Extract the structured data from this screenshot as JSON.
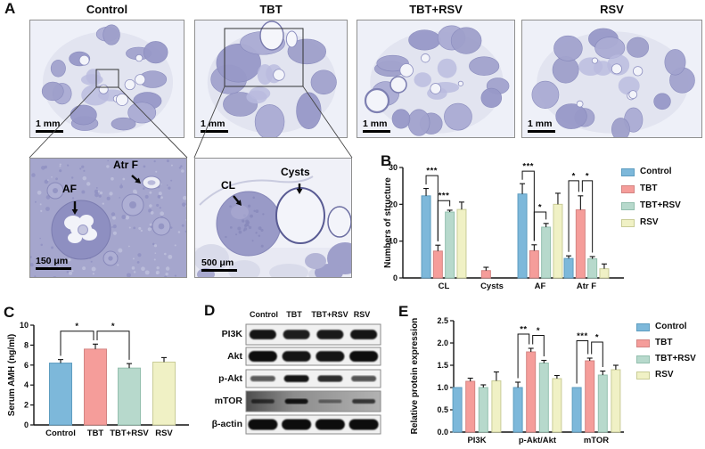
{
  "panels": {
    "a": "A",
    "b": "B",
    "c": "C",
    "d": "D",
    "e": "E"
  },
  "panel_a": {
    "groups": [
      "Control",
      "TBT",
      "TBT+RSV",
      "RSV"
    ],
    "scale_bar_top": "1 mm",
    "scale_bar_inset1": "150 μm",
    "scale_bar_inset2": "500 μm",
    "annotations": {
      "af": "AF",
      "atrf": "Atr F",
      "cl": "CL",
      "cysts": "Cysts"
    }
  },
  "legend": {
    "items": [
      "Control",
      "TBT",
      "TBT+RSV",
      "RSV"
    ]
  },
  "colors": {
    "series_fill": [
      "#7db8da",
      "#f59d9a",
      "#b7d9cc",
      "#f0f1c5"
    ],
    "series_border": [
      "#5e9dc0",
      "#d38482",
      "#93bfae",
      "#c9cc97"
    ]
  },
  "chart_data": [
    {
      "id": "B",
      "type": "bar",
      "ylabel": "Numbers of structure",
      "ylim": [
        0,
        30
      ],
      "yticks": [
        0,
        10,
        20,
        30
      ],
      "ytick_labels": [
        "0",
        "10",
        "20",
        "30"
      ],
      "categories": [
        "CL",
        "Cysts",
        "AF",
        "Atr F"
      ],
      "series": [
        {
          "name": "Control",
          "values": [
            22.3,
            0,
            22.8,
            5.3
          ],
          "errors": [
            2.0,
            0,
            2.8,
            0.7
          ]
        },
        {
          "name": "TBT",
          "values": [
            7.3,
            2.0,
            7.4,
            18.5
          ],
          "errors": [
            1.6,
            0.9,
            1.6,
            3.8
          ]
        },
        {
          "name": "TBT+RSV",
          "values": [
            17.9,
            0,
            13.8,
            5.2
          ],
          "errors": [
            0.5,
            0,
            1.0,
            0.6
          ]
        },
        {
          "name": "RSV",
          "values": [
            18.6,
            0,
            20.0,
            2.5
          ],
          "errors": [
            2.0,
            0,
            3.0,
            1.3
          ]
        }
      ],
      "significance": [
        {
          "bar1": "CL.Control",
          "bar2": "CL.TBT",
          "label": "***",
          "top": 27.8
        },
        {
          "bar1": "CL.TBT",
          "bar2": "CL.TBT+RSV",
          "label": "***",
          "top": 21.0
        },
        {
          "bar1": "AF.Control",
          "bar2": "AF.TBT",
          "label": "***",
          "top": 29.0
        },
        {
          "bar1": "AF.TBT",
          "bar2": "AF.TBT+RSV",
          "label": "*",
          "top": 17.9
        },
        {
          "bar1": "Atr F.Control",
          "bar2": "Atr F.TBT",
          "label": "*",
          "top": 26.4,
          "dx2": -2
        },
        {
          "bar1": "Atr F.TBT",
          "bar2": "Atr F.TBT+RSV",
          "label": "*",
          "top": 26.4,
          "dx1": 2
        }
      ],
      "legend_position": "right",
      "grid": false
    },
    {
      "id": "C",
      "type": "bar",
      "ylabel": "Serum AMH (ng/ml)",
      "ylim": [
        0,
        10
      ],
      "yticks": [
        0,
        2,
        4,
        6,
        8,
        10
      ],
      "ytick_labels": [
        "0",
        "2",
        "4",
        "6",
        "8",
        "10"
      ],
      "categories": [
        "Control",
        "TBT",
        "TBT+RSV",
        "RSV"
      ],
      "series": [
        {
          "name": "Serum AMH",
          "values": [
            6.2,
            7.6,
            5.7,
            6.3
          ],
          "errors": [
            0.35,
            0.5,
            0.45,
            0.45
          ]
        }
      ],
      "significance": [
        {
          "bar1": "Control",
          "bar2": "TBT",
          "label": "*",
          "top": 9.4,
          "dx2": -2
        },
        {
          "bar1": "TBT",
          "bar2": "TBT+RSV",
          "label": "*",
          "top": 9.4,
          "dx1": 2
        }
      ],
      "legend_position": "none",
      "grid": false
    },
    {
      "id": "E",
      "type": "bar",
      "ylabel": "Relative protein expression",
      "ylim": [
        0,
        2.5
      ],
      "yticks": [
        0,
        0.5,
        1,
        1.5,
        2,
        2.5
      ],
      "ytick_labels": [
        "0.0",
        "0.5",
        "1.0",
        "1.5",
        "2.0",
        "2.5"
      ],
      "categories": [
        "PI3K",
        "p-Akt/Akt",
        "mTOR"
      ],
      "series": [
        {
          "name": "Control",
          "values": [
            1.0,
            1.0,
            1.0
          ],
          "errors": [
            0,
            0.12,
            0
          ]
        },
        {
          "name": "TBT",
          "values": [
            1.14,
            1.8,
            1.6
          ],
          "errors": [
            0.07,
            0.08,
            0.06
          ]
        },
        {
          "name": "TBT+RSV",
          "values": [
            1.0,
            1.55,
            1.28
          ],
          "errors": [
            0.06,
            0.06,
            0.09
          ]
        },
        {
          "name": "RSV",
          "values": [
            1.15,
            1.2,
            1.4
          ],
          "errors": [
            0.2,
            0.07,
            0.1
          ]
        }
      ],
      "significance": [
        {
          "bar1": "p-Akt/Akt.Control",
          "bar2": "p-Akt/Akt.TBT",
          "label": "**",
          "top": 2.2,
          "dx2": -2
        },
        {
          "bar1": "p-Akt/Akt.TBT",
          "bar2": "p-Akt/Akt.TBT+RSV",
          "label": "*",
          "top": 2.17,
          "dx1": 2
        },
        {
          "bar1": "mTOR.Control",
          "bar2": "mTOR.TBT",
          "label": "***",
          "top": 2.05,
          "dx2": -2
        },
        {
          "bar1": "mTOR.TBT",
          "bar2": "mTOR.TBT+RSV",
          "label": "*",
          "top": 2.02,
          "dx1": 2
        }
      ],
      "legend_position": "right",
      "grid": false
    }
  ],
  "blots": {
    "lanes": [
      "Control",
      "TBT",
      "TBT+RSV",
      "RSV"
    ],
    "rows": [
      {
        "label": "PI3K",
        "intensities": [
          0.95,
          0.9,
          0.92,
          0.95
        ],
        "dark_bg": false
      },
      {
        "label": "Akt",
        "intensities": [
          1,
          0.95,
          0.95,
          1
        ],
        "dark_bg": false
      },
      {
        "label": "p-Akt",
        "intensities": [
          0.5,
          0.95,
          0.8,
          0.55
        ],
        "dark_bg": false
      },
      {
        "label": "mTOR",
        "intensities": [
          0.55,
          0.9,
          0.3,
          0.65
        ],
        "dark_bg": true
      },
      {
        "label": "β-actin",
        "intensities": [
          1,
          1,
          1,
          1
        ],
        "dark_bg": false
      }
    ]
  }
}
